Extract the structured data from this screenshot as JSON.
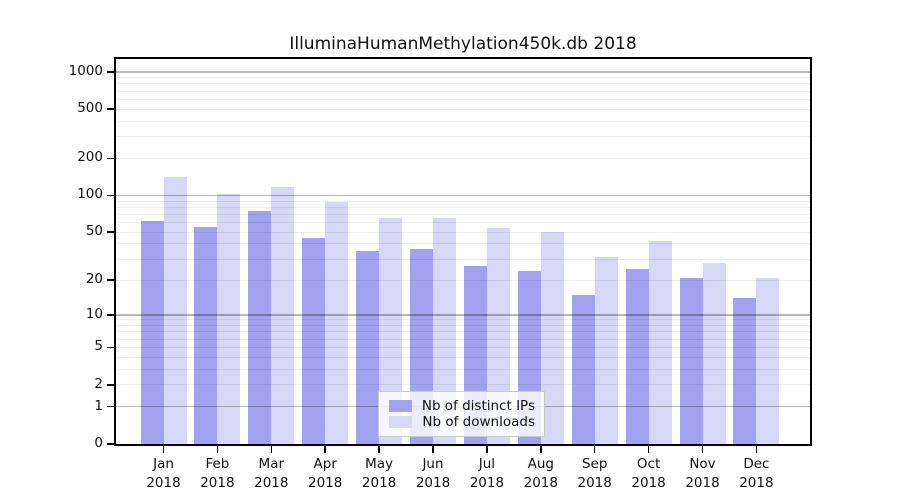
{
  "chart_data": {
    "type": "bar",
    "title": "IlluminaHumanMethylation450k.db 2018",
    "categories": [
      "Jan",
      "Feb",
      "Mar",
      "Apr",
      "May",
      "Jun",
      "Jul",
      "Aug",
      "Sep",
      "Oct",
      "Nov",
      "Dec"
    ],
    "category_year": "2018",
    "series": [
      {
        "name": "Nb of distinct IPs",
        "color": "#a2a2f0",
        "values": [
          62,
          55,
          75,
          45,
          35,
          36,
          26,
          24,
          15,
          25,
          21,
          14
        ]
      },
      {
        "name": "Nb of downloads",
        "color": "#d7d7f7",
        "values": [
          140,
          102,
          118,
          88,
          65,
          66,
          54,
          50,
          31,
          42,
          28,
          21
        ]
      }
    ],
    "yscale": "log1p",
    "yticks": [
      1000,
      500,
      200,
      100,
      50,
      20,
      10,
      5,
      2,
      1,
      0
    ],
    "ylim": [
      0,
      1270
    ],
    "grid": true,
    "legend_position": "bottom-center"
  },
  "colors": {
    "axis": "#000000",
    "decade_gridline": "rgba(0,0,0,0.28)",
    "minor_gridline": "rgba(0,0,0,0.07)",
    "legend_border": "#c9c9c9",
    "legend_background": "rgba(255,255,255,0.8)"
  }
}
